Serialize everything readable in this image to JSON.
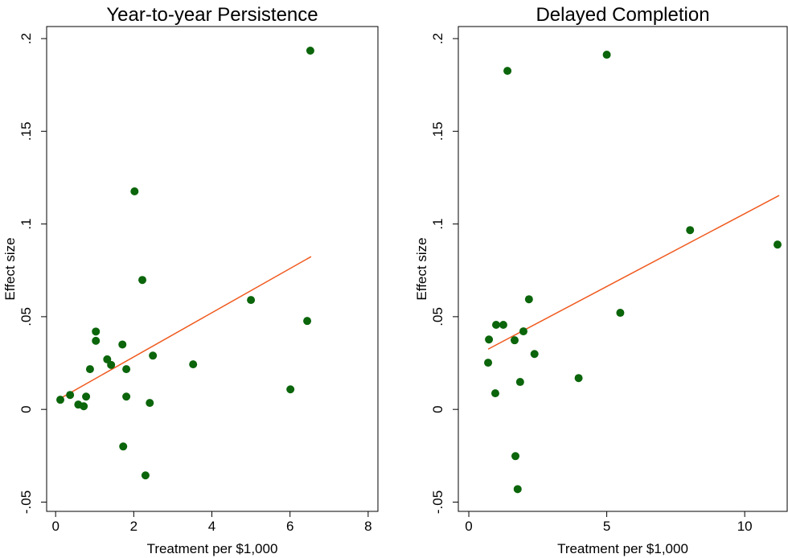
{
  "chart_data": [
    {
      "type": "scatter",
      "title": "Year-to-year Persistence",
      "xlabel": "Treatment per $1,000",
      "ylabel": "Effect size",
      "color": "#0b650b",
      "x": [
        0.12,
        0.37,
        0.58,
        0.72,
        0.78,
        0.88,
        1.03,
        1.03,
        1.32,
        1.42,
        1.71,
        1.73,
        1.81,
        1.81,
        2.02,
        2.22,
        2.3,
        2.41,
        2.49,
        3.52,
        5.0,
        6.01,
        6.44,
        6.52
      ],
      "values": [
        0.0052,
        0.0078,
        0.0026,
        0.0017,
        0.0069,
        0.0217,
        0.042,
        0.037,
        0.027,
        0.024,
        0.035,
        -0.02,
        0.0217,
        0.0069,
        0.1176,
        0.0698,
        -0.0356,
        0.0035,
        0.029,
        0.0243,
        0.059,
        0.0108,
        0.0477,
        0.1935
      ],
      "fit_line": {
        "x": [
          0.06,
          6.54
        ],
        "values": [
          0.0052,
          0.0824
        ],
        "color": "#f05a1e"
      },
      "xlim": [
        -0.23,
        8.25
      ],
      "ylim": [
        -0.055,
        0.2065
      ],
      "xticks": [
        0,
        2,
        4,
        6,
        8
      ],
      "yticks": [
        {
          "value": -0.05,
          "label": "-.05"
        },
        0,
        {
          "value": 0.05,
          "label": ".05"
        },
        {
          "value": 0.1,
          "label": ".1"
        },
        {
          "value": 0.15,
          "label": ".15"
        },
        {
          "value": 0.2,
          "label": ".2"
        }
      ]
    },
    {
      "type": "scatter",
      "title": "Delayed Completion",
      "xlabel": "Treatment per $1,000",
      "ylabel": "Effect size",
      "color": "#0b650b",
      "x": [
        0.73,
        0.7,
        0.96,
        0.99,
        1.25,
        1.4,
        1.66,
        1.69,
        1.77,
        1.86,
        1.98,
        2.18,
        2.38,
        3.98,
        5.0,
        5.49,
        8.02,
        11.19
      ],
      "values": [
        0.0377,
        0.0252,
        0.0087,
        0.0456,
        0.0456,
        0.1826,
        0.0373,
        -0.0252,
        -0.043,
        0.0148,
        0.0421,
        0.0594,
        0.0299,
        0.0169,
        0.1913,
        0.0521,
        0.0967,
        0.0889
      ],
      "fit_line": {
        "x": [
          0.7,
          11.25
        ],
        "values": [
          0.0325,
          0.1154
        ],
        "color": "#f05a1e"
      },
      "xlim": [
        -0.38,
        11.54
      ],
      "ylim": [
        -0.055,
        0.2065
      ],
      "xticks": [
        0,
        5,
        10
      ],
      "yticks": [
        {
          "value": -0.05,
          "label": "-.05"
        },
        0,
        {
          "value": 0.05,
          "label": ".05"
        },
        {
          "value": 0.1,
          "label": ".1"
        },
        {
          "value": 0.15,
          "label": ".15"
        },
        {
          "value": 0.2,
          "label": ".2"
        }
      ]
    }
  ]
}
